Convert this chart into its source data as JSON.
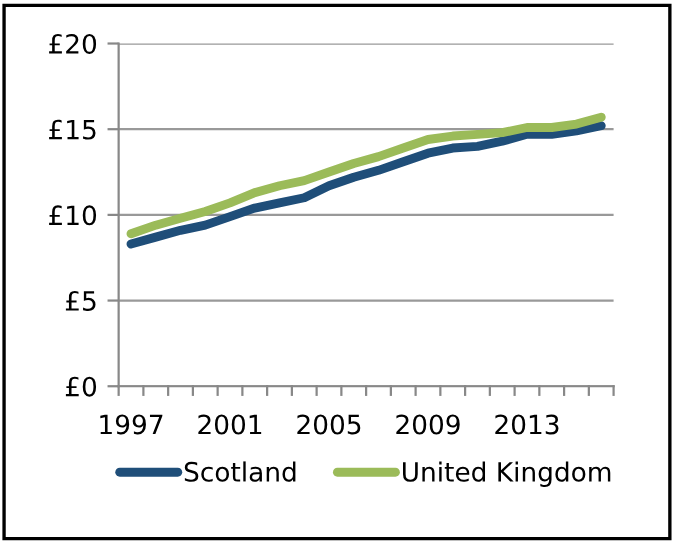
{
  "chart_data": {
    "type": "line",
    "categories": [
      "1997",
      null,
      null,
      null,
      "2001",
      null,
      null,
      null,
      "2005",
      null,
      null,
      null,
      "2009",
      null,
      null,
      null,
      "2013",
      null,
      null,
      null
    ],
    "series": [
      {
        "name": "Scotland",
        "color": "#1f4e79",
        "values": [
          8.3,
          8.7,
          9.1,
          9.4,
          9.9,
          10.4,
          10.7,
          11.0,
          11.7,
          12.2,
          12.6,
          13.1,
          13.6,
          13.9,
          14.0,
          14.3,
          14.7,
          14.7,
          14.9,
          15.2
        ]
      },
      {
        "name": "United Kingdom",
        "color": "#9bbb59",
        "values": [
          8.9,
          9.4,
          9.8,
          10.2,
          10.7,
          11.3,
          11.7,
          12.0,
          12.5,
          13.0,
          13.4,
          13.9,
          14.4,
          14.6,
          14.7,
          14.8,
          15.1,
          15.1,
          15.3,
          15.7
        ]
      }
    ],
    "ylim": [
      0,
      20
    ],
    "yticks": [
      {
        "value": 0,
        "label": "£0"
      },
      {
        "value": 5,
        "label": "£5"
      },
      {
        "value": 10,
        "label": "£10"
      },
      {
        "value": 15,
        "label": "£15"
      },
      {
        "value": 20,
        "label": "£20"
      }
    ],
    "grid": "y",
    "legend": "bottom",
    "marker": "none",
    "line_style": "solid"
  }
}
